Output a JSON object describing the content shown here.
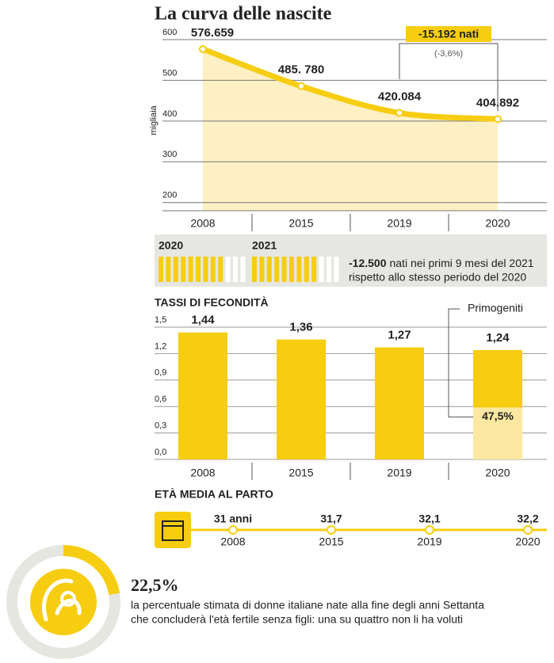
{
  "chart_data": [
    {
      "type": "line",
      "title": "La curva delle nascite",
      "ylabel": "migliaia",
      "categories": [
        "2008",
        "2015",
        "2019",
        "2020"
      ],
      "values": [
        576.659,
        485.78,
        420.084,
        404.892
      ],
      "value_labels": [
        "576.659",
        "485. 780",
        "420.084",
        "404.892"
      ],
      "color": "#f6cd10",
      "ylim": [
        180,
        600
      ],
      "yticks": [
        200,
        300,
        400,
        500,
        600
      ],
      "grid": true,
      "annotation": {
        "label": "-15.192 nati",
        "sublabel": "(-3,6%)"
      }
    },
    {
      "type": "stripes",
      "labels": [
        "2020",
        "2021"
      ],
      "highlight": "-12.500",
      "text": [
        "nati nei primi 9 mesi del 2021",
        "rispetto allo stesso periodo del 2020"
      ]
    },
    {
      "type": "bar",
      "title": "TASSI DI FECONDITÀ",
      "categories": [
        "2008",
        "2015",
        "2019",
        "2020"
      ],
      "values": [
        1.44,
        1.36,
        1.27,
        1.24
      ],
      "value_labels": [
        "1,44",
        "1,36",
        "1,27",
        "1,24"
      ],
      "color": "#f6cd10",
      "ylim": [
        0,
        1.5
      ],
      "yticks": [
        {
          "value": 0,
          "label": "0,0"
        },
        {
          "value": 0.3,
          "label": "0,3"
        },
        {
          "value": 0.6,
          "label": "0,6"
        },
        {
          "value": 0.9,
          "label": "0,9"
        },
        {
          "value": 1.2,
          "label": "1,2"
        },
        {
          "value": 1.5,
          "label": "1,5"
        }
      ],
      "share": {
        "label": "Primogeniti",
        "value": 47.5,
        "value_label": "47,5%",
        "color": "#fce8a0"
      }
    },
    {
      "type": "timeline",
      "title": "ETÀ MEDIA AL PARTO",
      "categories": [
        "2008",
        "2015",
        "2019",
        "2020"
      ],
      "values": [
        31,
        31.7,
        32.1,
        32.2
      ],
      "value_labels": [
        "31 anni",
        "31,7",
        "32,1",
        "32,2"
      ],
      "color": "#f6cd10"
    },
    {
      "type": "stat",
      "value": 22.5,
      "value_label": "22,5%",
      "color": "#f6cd10",
      "text": [
        "la percentuale stimata di donne italiane nate alla fine degli anni Settanta",
        "che concluderà l'età fertile senza figli: una su quattro non li ha voluti"
      ]
    }
  ]
}
